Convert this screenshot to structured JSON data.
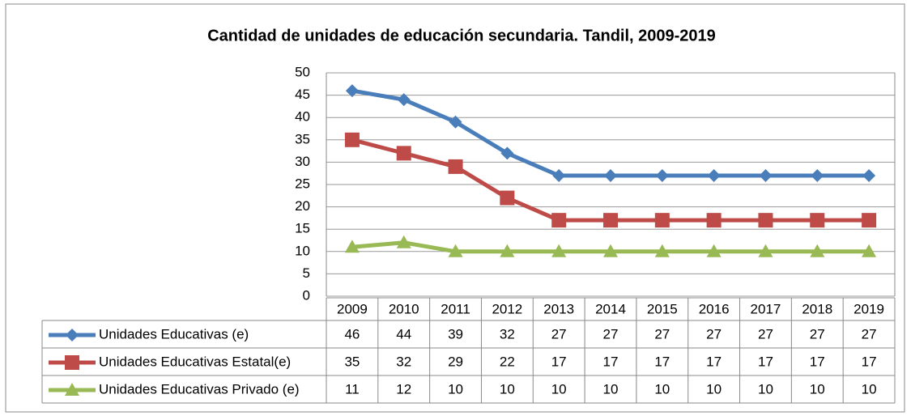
{
  "chart_data": {
    "type": "line",
    "title": "Cantidad de unidades de educación secundaria. Tandil, 2009-2019",
    "categories": [
      "2009",
      "2010",
      "2011",
      "2012",
      "2013",
      "2014",
      "2015",
      "2016",
      "2017",
      "2018",
      "2019"
    ],
    "series": [
      {
        "name": "Unidades Educativas (e)",
        "color": "#4a7ebb",
        "marker": "diamond",
        "values": [
          46,
          44,
          39,
          32,
          27,
          27,
          27,
          27,
          27,
          27,
          27
        ]
      },
      {
        "name": "Unidades Educativas Estatal(e)",
        "color": "#be4b48",
        "marker": "square",
        "values": [
          35,
          32,
          29,
          22,
          17,
          17,
          17,
          17,
          17,
          17,
          17
        ]
      },
      {
        "name": "Unidades Educativas Privado (e)",
        "color": "#98b954",
        "marker": "triangle",
        "values": [
          11,
          12,
          10,
          10,
          10,
          10,
          10,
          10,
          10,
          10,
          10
        ]
      }
    ],
    "ylim": [
      0,
      50
    ],
    "yticks": [
      0,
      5,
      10,
      15,
      20,
      25,
      30,
      35,
      40,
      45,
      50
    ],
    "grid": true,
    "data_table": true
  }
}
